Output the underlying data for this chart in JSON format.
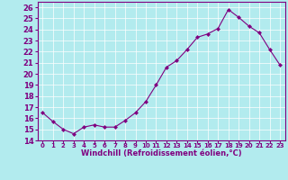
{
  "x": [
    0,
    1,
    2,
    3,
    4,
    5,
    6,
    7,
    8,
    9,
    10,
    11,
    12,
    13,
    14,
    15,
    16,
    17,
    18,
    19,
    20,
    21,
    22,
    23
  ],
  "y": [
    16.5,
    15.7,
    15.0,
    14.6,
    15.2,
    15.4,
    15.2,
    15.2,
    15.8,
    16.5,
    17.5,
    19.0,
    20.6,
    21.2,
    22.2,
    23.3,
    23.6,
    24.1,
    25.8,
    25.1,
    24.3,
    23.7,
    22.2,
    20.8
  ],
  "xlabel": "Windchill (Refroidissement éolien,°C)",
  "line_color": "#800080",
  "marker": "D",
  "marker_size": 2.5,
  "bg_color": "#b2ebee",
  "grid_color": "#ffffff",
  "ylim": [
    14,
    26.5
  ],
  "yticks": [
    14,
    15,
    16,
    17,
    18,
    19,
    20,
    21,
    22,
    23,
    24,
    25,
    26
  ],
  "xlim": [
    -0.5,
    23.5
  ],
  "xtick_labels": [
    "0",
    "1",
    "2",
    "3",
    "4",
    "5",
    "6",
    "7",
    "8",
    "9",
    "10",
    "11",
    "12",
    "13",
    "14",
    "15",
    "16",
    "17",
    "18",
    "19",
    "20",
    "21",
    "22",
    "23"
  ]
}
